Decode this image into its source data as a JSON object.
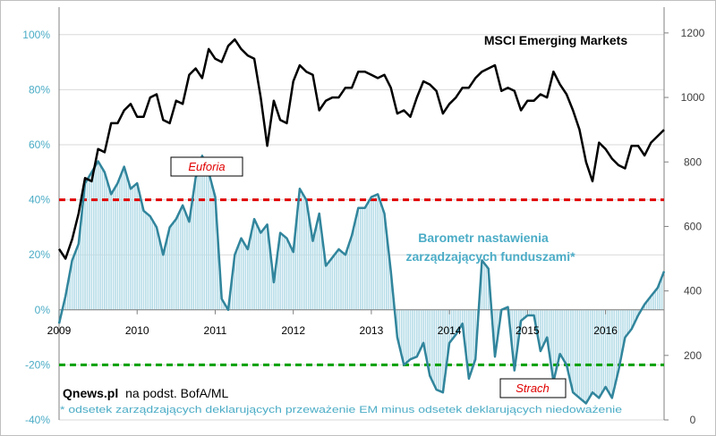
{
  "chart_data": {
    "type": "line",
    "title": "MSCI Emerging Markets",
    "source": "Qnews.pl",
    "source_suffix": "na podst. BofA/ML",
    "footnote": "* odsetek zarządzających deklarujących przeważenie EM minus odsetek deklarujących niedoważenie",
    "series_label": [
      "Barometr nastawienia",
      "zarządzających  funduszami*"
    ],
    "annotations": {
      "euforia": "Euforia",
      "strach": "Strach"
    },
    "x_ticks": [
      "2009",
      "2010",
      "2011",
      "2012",
      "2013",
      "2014",
      "2015",
      "2016"
    ],
    "x_range": [
      2009.0,
      2016.75
    ],
    "y_left": {
      "ticks": [
        "-40%",
        "-20%",
        "0%",
        "20%",
        "40%",
        "60%",
        "80%",
        "100%"
      ],
      "range": [
        -40,
        110
      ]
    },
    "y_right": {
      "ticks": [
        "0",
        "200",
        "400",
        "600",
        "800",
        "1000",
        "1200"
      ],
      "range": [
        0,
        1280
      ]
    },
    "thresholds": {
      "upper": 40,
      "lower": -20
    },
    "colors": {
      "msci": "#000000",
      "barometer": "#31859c",
      "bars": "#b7dde8",
      "upper_line": "#e00000",
      "lower_line": "#00a000",
      "left_ticks": "#4bacc6"
    },
    "series": [
      {
        "name": "MSCI Emerging Markets",
        "axis": "right",
        "x": [
          2009.0,
          2009.083,
          2009.167,
          2009.25,
          2009.333,
          2009.417,
          2009.5,
          2009.583,
          2009.667,
          2009.75,
          2009.833,
          2009.917,
          2010.0,
          2010.083,
          2010.167,
          2010.25,
          2010.333,
          2010.417,
          2010.5,
          2010.583,
          2010.667,
          2010.75,
          2010.833,
          2010.917,
          2011.0,
          2011.083,
          2011.167,
          2011.25,
          2011.333,
          2011.417,
          2011.5,
          2011.583,
          2011.667,
          2011.75,
          2011.833,
          2011.917,
          2012.0,
          2012.083,
          2012.167,
          2012.25,
          2012.333,
          2012.417,
          2012.5,
          2012.583,
          2012.667,
          2012.75,
          2012.833,
          2012.917,
          2013.0,
          2013.083,
          2013.167,
          2013.25,
          2013.333,
          2013.417,
          2013.5,
          2013.583,
          2013.667,
          2013.75,
          2013.833,
          2013.917,
          2014.0,
          2014.083,
          2014.167,
          2014.25,
          2014.333,
          2014.417,
          2014.5,
          2014.583,
          2014.667,
          2014.75,
          2014.833,
          2014.917,
          2015.0,
          2015.083,
          2015.167,
          2015.25,
          2015.333,
          2015.417,
          2015.5,
          2015.583,
          2015.667,
          2015.75,
          2015.833,
          2015.917,
          2016.0,
          2016.083,
          2016.167,
          2016.25,
          2016.333,
          2016.417,
          2016.5,
          2016.583,
          2016.667,
          2016.75
        ],
        "values": [
          530,
          500,
          560,
          640,
          750,
          740,
          840,
          830,
          920,
          920,
          960,
          980,
          940,
          940,
          1000,
          1010,
          930,
          920,
          990,
          980,
          1070,
          1090,
          1060,
          1150,
          1120,
          1110,
          1160,
          1180,
          1150,
          1130,
          1120,
          1000,
          850,
          990,
          930,
          920,
          1050,
          1100,
          1080,
          1070,
          960,
          990,
          1000,
          1000,
          1030,
          1030,
          1080,
          1080,
          1070,
          1060,
          1070,
          1030,
          950,
          960,
          940,
          1000,
          1050,
          1040,
          1020,
          950,
          980,
          1000,
          1030,
          1030,
          1060,
          1080,
          1090,
          1100,
          1020,
          1030,
          1020,
          960,
          990,
          990,
          1010,
          1000,
          1080,
          1040,
          1010,
          960,
          900,
          800,
          740,
          860,
          840,
          810,
          790,
          780,
          850,
          850,
          820,
          860,
          880,
          900
        ]
      },
      {
        "name": "Barometr nastawienia zarządzających funduszami*",
        "axis": "left",
        "x": [
          2009.0,
          2009.083,
          2009.167,
          2009.25,
          2009.333,
          2009.417,
          2009.5,
          2009.583,
          2009.667,
          2009.75,
          2009.833,
          2009.917,
          2010.0,
          2010.083,
          2010.167,
          2010.25,
          2010.333,
          2010.417,
          2010.5,
          2010.583,
          2010.667,
          2010.75,
          2010.833,
          2010.917,
          2011.0,
          2011.083,
          2011.167,
          2011.25,
          2011.333,
          2011.417,
          2011.5,
          2011.583,
          2011.667,
          2011.75,
          2011.833,
          2011.917,
          2012.0,
          2012.083,
          2012.167,
          2012.25,
          2012.333,
          2012.417,
          2012.5,
          2012.583,
          2012.667,
          2012.75,
          2012.833,
          2012.917,
          2013.0,
          2013.083,
          2013.167,
          2013.25,
          2013.333,
          2013.417,
          2013.5,
          2013.583,
          2013.667,
          2013.75,
          2013.833,
          2013.917,
          2014.0,
          2014.083,
          2014.167,
          2014.25,
          2014.333,
          2014.417,
          2014.5,
          2014.583,
          2014.667,
          2014.75,
          2014.833,
          2014.917,
          2015.0,
          2015.083,
          2015.167,
          2015.25,
          2015.333,
          2015.417,
          2015.5,
          2015.583,
          2015.667,
          2015.75,
          2015.833,
          2015.917,
          2016.0,
          2016.083,
          2016.167,
          2016.25,
          2016.333,
          2016.417,
          2016.5,
          2016.583,
          2016.667,
          2016.75
        ],
        "values": [
          -5,
          5,
          18,
          24,
          46,
          50,
          54,
          50,
          42,
          46,
          52,
          44,
          46,
          36,
          34,
          30,
          20,
          30,
          33,
          38,
          32,
          48,
          56,
          50,
          41,
          4,
          0,
          20,
          26,
          22,
          33,
          28,
          31,
          10,
          28,
          26,
          21,
          44,
          40,
          25,
          35,
          16,
          19,
          22,
          20,
          27,
          37,
          37,
          41,
          42,
          35,
          14,
          -10,
          -20,
          -18,
          -17,
          -12,
          -24,
          -29,
          -30,
          -12,
          -9,
          -5,
          -25,
          -18,
          18,
          15,
          -17,
          0,
          1,
          -22,
          -4,
          -2,
          -2,
          -15,
          -10,
          -26,
          -16,
          -20,
          -30,
          -32,
          -34,
          -30,
          -32,
          -28,
          -32,
          -22,
          -10,
          -7,
          -2,
          2,
          5,
          8,
          14
        ]
      }
    ]
  }
}
